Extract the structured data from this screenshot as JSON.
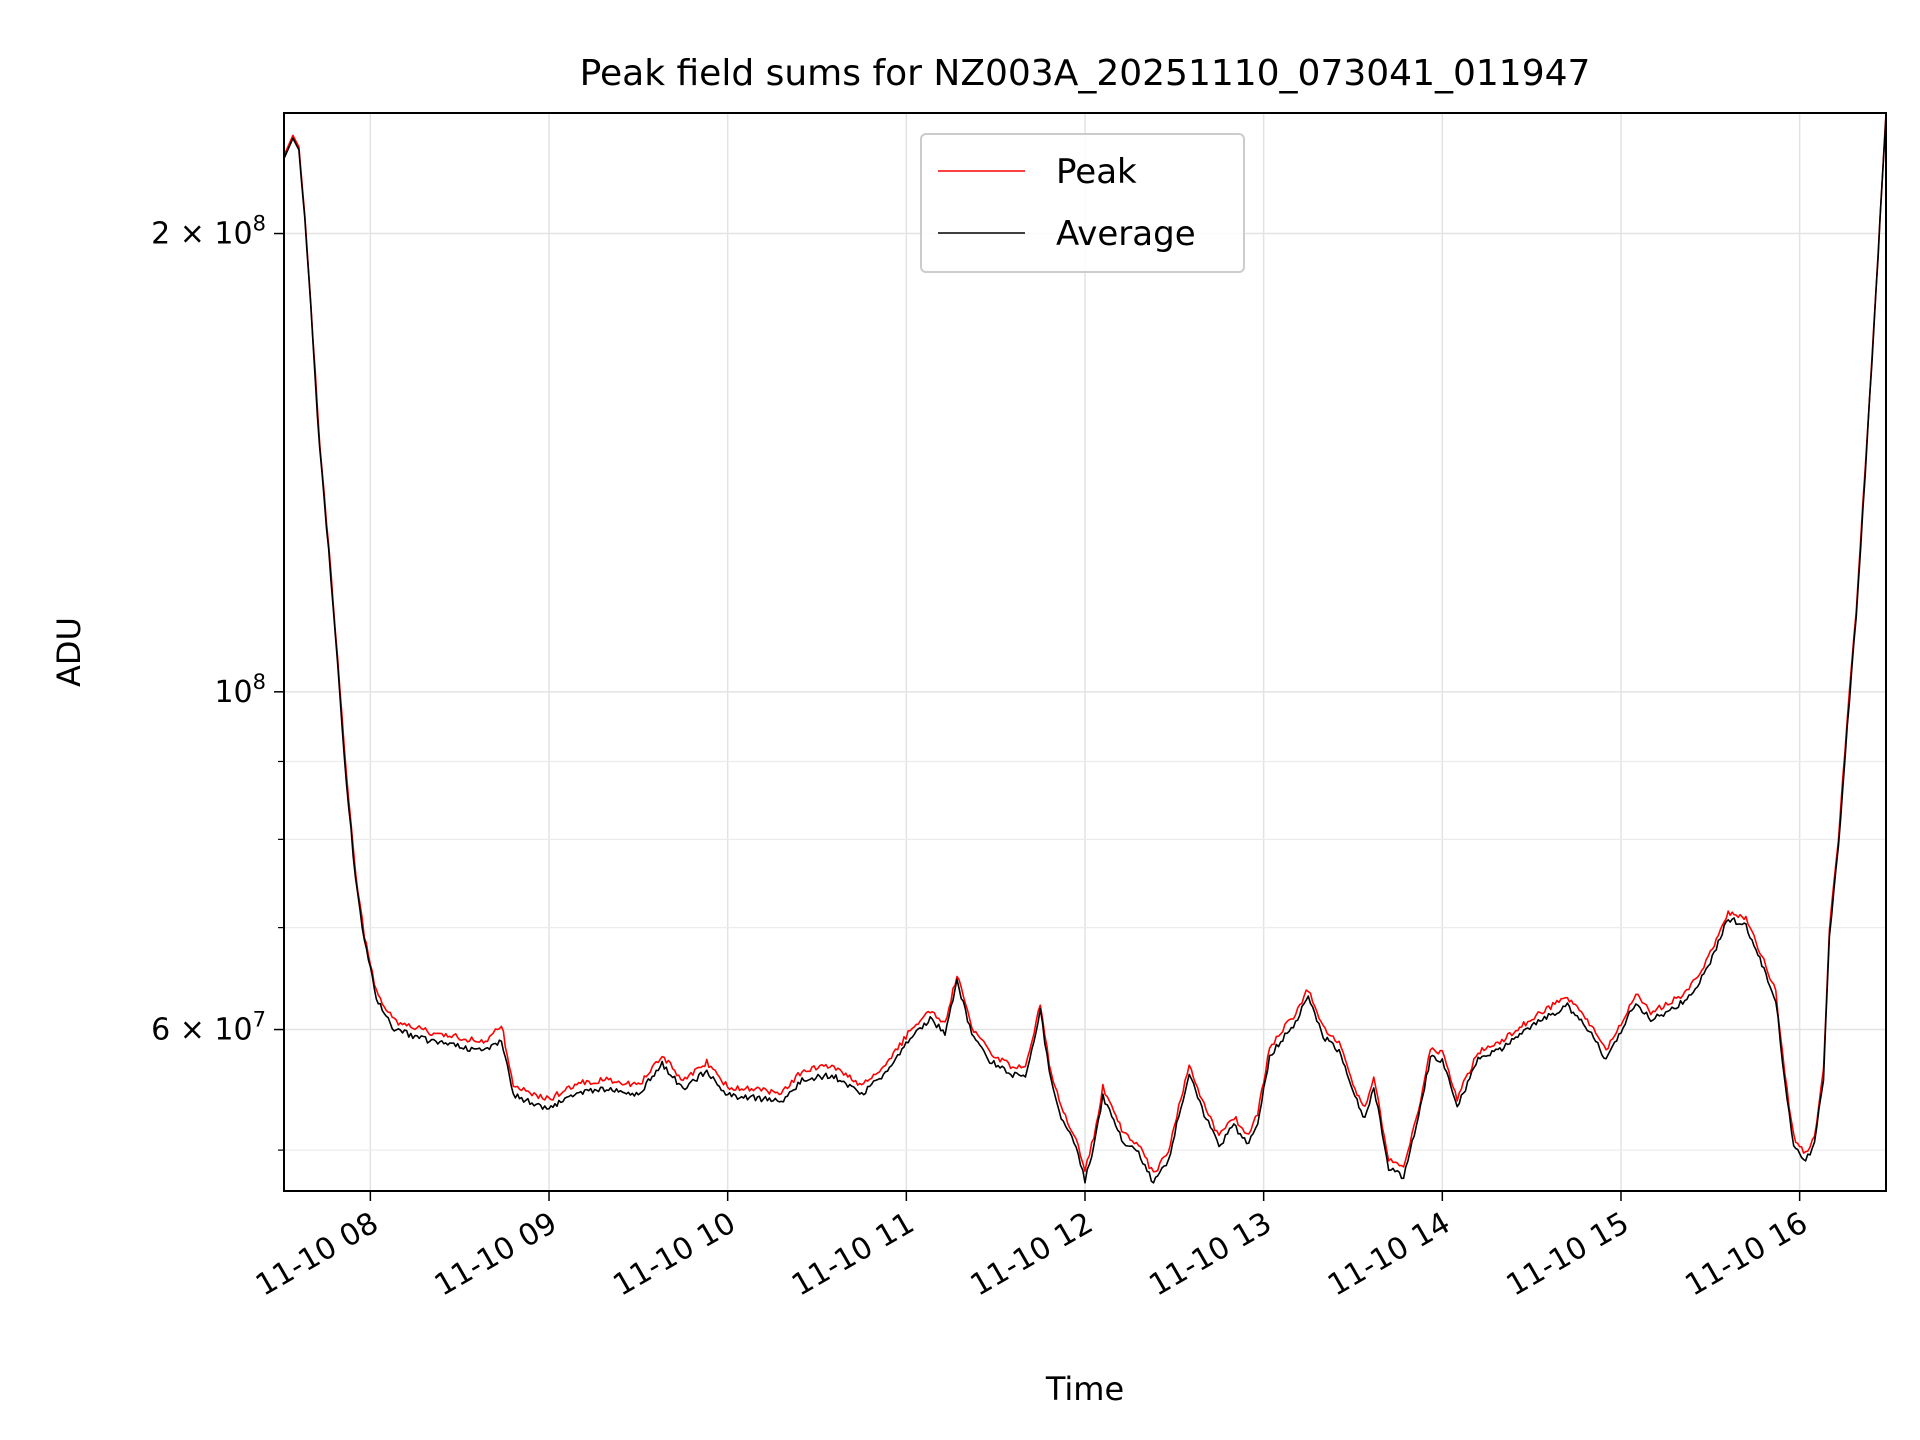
{
  "chart_data": {
    "type": "line",
    "title": "Peak field sums for NZ003A_20251110_073041_011947",
    "xlabel": "Time",
    "ylabel": "ADU",
    "y_scale": "log",
    "ylim": [
      47000000,
      240000000
    ],
    "xlim": [
      "11-10 07:31",
      "11-10 16:29"
    ],
    "grid": true,
    "legend_position": "upper center",
    "x_ticks": [
      {
        "value": "11-10 08:00",
        "label": "11-10 08"
      },
      {
        "value": "11-10 09:00",
        "label": "11-10 09"
      },
      {
        "value": "11-10 10:00",
        "label": "11-10 10"
      },
      {
        "value": "11-10 11:00",
        "label": "11-10 11"
      },
      {
        "value": "11-10 12:00",
        "label": "11-10 12"
      },
      {
        "value": "11-10 13:00",
        "label": "11-10 13"
      },
      {
        "value": "11-10 14:00",
        "label": "11-10 14"
      },
      {
        "value": "11-10 15:00",
        "label": "11-10 15"
      },
      {
        "value": "11-10 16:00",
        "label": "11-10 16"
      }
    ],
    "y_major_ticks": [
      {
        "value": 60000000,
        "base": "6 × 10",
        "exp": "7"
      },
      {
        "value": 100000000,
        "base": "10",
        "exp": "8"
      },
      {
        "value": 200000000,
        "base": "2 × 10",
        "exp": "8"
      }
    ],
    "y_minor_ticks": [
      50000000,
      70000000,
      80000000,
      90000000
    ],
    "series": [
      {
        "name": "Peak",
        "color": "#ff0000",
        "points": [
          [
            "11-10 07:31",
            225000000
          ],
          [
            "11-10 07:34",
            232000000
          ],
          [
            "11-10 07:36",
            228000000
          ],
          [
            "11-10 07:38",
            205000000
          ],
          [
            "11-10 07:40",
            180000000
          ],
          [
            "11-10 07:43",
            145000000
          ],
          [
            "11-10 07:46",
            125000000
          ],
          [
            "11-10 07:49",
            105000000
          ],
          [
            "11-10 07:52",
            88000000
          ],
          [
            "11-10 07:55",
            76000000
          ],
          [
            "11-10 07:58",
            69000000
          ],
          [
            "11-10 08:02",
            63500000
          ],
          [
            "11-10 08:08",
            60800000
          ],
          [
            "11-10 08:15",
            60200000
          ],
          [
            "11-10 08:22",
            59600000
          ],
          [
            "11-10 08:30",
            59300000
          ],
          [
            "11-10 08:38",
            58800000
          ],
          [
            "11-10 08:44",
            60500000
          ],
          [
            "11-10 08:48",
            55200000
          ],
          [
            "11-10 08:55",
            54400000
          ],
          [
            "11-10 09:00",
            54000000
          ],
          [
            "11-10 09:10",
            55400000
          ],
          [
            "11-10 09:20",
            55600000
          ],
          [
            "11-10 09:30",
            55100000
          ],
          [
            "11-10 09:38",
            57700000
          ],
          [
            "11-10 09:45",
            55500000
          ],
          [
            "11-10 09:53",
            57100000
          ],
          [
            "11-10 10:00",
            55000000
          ],
          [
            "11-10 10:10",
            54800000
          ],
          [
            "11-10 10:18",
            54500000
          ],
          [
            "11-10 10:25",
            56400000
          ],
          [
            "11-10 10:35",
            56800000
          ],
          [
            "11-10 10:45",
            55100000
          ],
          [
            "11-10 10:55",
            57500000
          ],
          [
            "11-10 11:02",
            60200000
          ],
          [
            "11-10 11:08",
            61600000
          ],
          [
            "11-10 11:13",
            60500000
          ],
          [
            "11-10 11:17",
            65200000
          ],
          [
            "11-10 11:22",
            60300000
          ],
          [
            "11-10 11:28",
            57900000
          ],
          [
            "11-10 11:35",
            56800000
          ],
          [
            "11-10 11:40",
            56500000
          ],
          [
            "11-10 11:45",
            62500000
          ],
          [
            "11-10 11:48",
            57000000
          ],
          [
            "11-10 11:52",
            53200000
          ],
          [
            "11-10 11:57",
            51000000
          ],
          [
            "11-10 12:00",
            48500000
          ],
          [
            "11-10 12:03",
            51000000
          ],
          [
            "11-10 12:06",
            55000000
          ],
          [
            "11-10 12:09",
            53500000
          ],
          [
            "11-10 12:13",
            51200000
          ],
          [
            "11-10 12:18",
            50500000
          ],
          [
            "11-10 12:23",
            48200000
          ],
          [
            "11-10 12:28",
            49900000
          ],
          [
            "11-10 12:35",
            57000000
          ],
          [
            "11-10 12:40",
            53500000
          ],
          [
            "11-10 12:45",
            51000000
          ],
          [
            "11-10 12:50",
            52600000
          ],
          [
            "11-10 12:55",
            51100000
          ],
          [
            "11-10 12:58",
            52900000
          ],
          [
            "11-10 13:02",
            58300000
          ],
          [
            "11-10 13:05",
            59500000
          ],
          [
            "11-10 13:10",
            61200000
          ],
          [
            "11-10 13:15",
            63800000
          ],
          [
            "11-10 13:20",
            60200000
          ],
          [
            "11-10 13:26",
            58500000
          ],
          [
            "11-10 13:30",
            55200000
          ],
          [
            "11-10 13:34",
            53200000
          ],
          [
            "11-10 13:37",
            55800000
          ],
          [
            "11-10 13:42",
            49300000
          ],
          [
            "11-10 13:47",
            48600000
          ],
          [
            "11-10 13:52",
            53200000
          ],
          [
            "11-10 13:56",
            58200000
          ],
          [
            "11-10 14:00",
            57900000
          ],
          [
            "11-10 14:05",
            54100000
          ],
          [
            "11-10 14:12",
            58000000
          ],
          [
            "11-10 14:20",
            59000000
          ],
          [
            "11-10 14:28",
            60600000
          ],
          [
            "11-10 14:35",
            61900000
          ],
          [
            "11-10 14:42",
            63000000
          ],
          [
            "11-10 14:48",
            61200000
          ],
          [
            "11-10 14:55",
            58100000
          ],
          [
            "11-10 15:00",
            60600000
          ],
          [
            "11-10 15:05",
            63300000
          ],
          [
            "11-10 15:10",
            61600000
          ],
          [
            "11-10 15:15",
            62300000
          ],
          [
            "11-10 15:20",
            63100000
          ],
          [
            "11-10 15:25",
            64600000
          ],
          [
            "11-10 15:30",
            67300000
          ],
          [
            "11-10 15:36",
            71700000
          ],
          [
            "11-10 15:42",
            70900000
          ],
          [
            "11-10 15:48",
            66500000
          ],
          [
            "11-10 15:52",
            63500000
          ],
          [
            "11-10 15:55",
            56000000
          ],
          [
            "11-10 15:58",
            51000000
          ],
          [
            "11-10 16:02",
            49800000
          ],
          [
            "11-10 16:05",
            51000000
          ],
          [
            "11-10 16:08",
            56500000
          ],
          [
            "11-10 16:10",
            70000000
          ],
          [
            "11-10 16:13",
            80000000
          ],
          [
            "11-10 16:16",
            96000000
          ],
          [
            "11-10 16:19",
            113000000
          ],
          [
            "11-10 16:22",
            140000000
          ],
          [
            "11-10 16:25",
            175000000
          ],
          [
            "11-10 16:29",
            240000000
          ]
        ]
      },
      {
        "name": "Average",
        "color": "#000000",
        "points": [
          [
            "11-10 07:31",
            224000000
          ],
          [
            "11-10 07:34",
            231000000
          ],
          [
            "11-10 07:36",
            227000000
          ],
          [
            "11-10 07:38",
            204000000
          ],
          [
            "11-10 07:40",
            179000000
          ],
          [
            "11-10 07:43",
            144000000
          ],
          [
            "11-10 07:46",
            124000000
          ],
          [
            "11-10 07:49",
            104000000
          ],
          [
            "11-10 07:52",
            87000000
          ],
          [
            "11-10 07:55",
            75500000
          ],
          [
            "11-10 07:58",
            68500000
          ],
          [
            "11-10 08:02",
            63000000
          ],
          [
            "11-10 08:08",
            60000000
          ],
          [
            "11-10 08:15",
            59400000
          ],
          [
            "11-10 08:22",
            58800000
          ],
          [
            "11-10 08:30",
            58500000
          ],
          [
            "11-10 08:38",
            58000000
          ],
          [
            "11-10 08:44",
            59000000
          ],
          [
            "11-10 08:48",
            54400000
          ],
          [
            "11-10 08:55",
            53600000
          ],
          [
            "11-10 09:00",
            53200000
          ],
          [
            "11-10 09:10",
            54600000
          ],
          [
            "11-10 09:20",
            54900000
          ],
          [
            "11-10 09:30",
            54400000
          ],
          [
            "11-10 09:38",
            57000000
          ],
          [
            "11-10 09:45",
            54800000
          ],
          [
            "11-10 09:53",
            56400000
          ],
          [
            "11-10 10:00",
            54300000
          ],
          [
            "11-10 10:10",
            54100000
          ],
          [
            "11-10 10:18",
            53800000
          ],
          [
            "11-10 10:25",
            55600000
          ],
          [
            "11-10 10:35",
            56000000
          ],
          [
            "11-10 10:45",
            54400000
          ],
          [
            "11-10 10:55",
            56700000
          ],
          [
            "11-10 11:02",
            59500000
          ],
          [
            "11-10 11:08",
            60900000
          ],
          [
            "11-10 11:13",
            59700000
          ],
          [
            "11-10 11:17",
            64500000
          ],
          [
            "11-10 11:22",
            59600000
          ],
          [
            "11-10 11:28",
            57200000
          ],
          [
            "11-10 11:35",
            56100000
          ],
          [
            "11-10 11:40",
            55800000
          ],
          [
            "11-10 11:45",
            61700000
          ],
          [
            "11-10 11:48",
            56300000
          ],
          [
            "11-10 11:52",
            52500000
          ],
          [
            "11-10 11:57",
            50300000
          ],
          [
            "11-10 12:00",
            47800000
          ],
          [
            "11-10 12:03",
            50300000
          ],
          [
            "11-10 12:06",
            54200000
          ],
          [
            "11-10 12:09",
            52800000
          ],
          [
            "11-10 12:13",
            50500000
          ],
          [
            "11-10 12:18",
            49800000
          ],
          [
            "11-10 12:23",
            47600000
          ],
          [
            "11-10 12:28",
            49200000
          ],
          [
            "11-10 12:35",
            56300000
          ],
          [
            "11-10 12:40",
            52800000
          ],
          [
            "11-10 12:45",
            50300000
          ],
          [
            "11-10 12:50",
            51900000
          ],
          [
            "11-10 12:55",
            50400000
          ],
          [
            "11-10 12:58",
            52200000
          ],
          [
            "11-10 13:02",
            57600000
          ],
          [
            "11-10 13:05",
            58700000
          ],
          [
            "11-10 13:10",
            60400000
          ],
          [
            "11-10 13:15",
            63000000
          ],
          [
            "11-10 13:20",
            59400000
          ],
          [
            "11-10 13:26",
            57800000
          ],
          [
            "11-10 13:30",
            54500000
          ],
          [
            "11-10 13:34",
            52500000
          ],
          [
            "11-10 13:37",
            55000000
          ],
          [
            "11-10 13:42",
            48700000
          ],
          [
            "11-10 13:47",
            48000000
          ],
          [
            "11-10 13:52",
            52500000
          ],
          [
            "11-10 13:56",
            57500000
          ],
          [
            "11-10 14:00",
            57200000
          ],
          [
            "11-10 14:05",
            53400000
          ],
          [
            "11-10 14:12",
            57300000
          ],
          [
            "11-10 14:20",
            58300000
          ],
          [
            "11-10 14:28",
            59900000
          ],
          [
            "11-10 14:35",
            61100000
          ],
          [
            "11-10 14:42",
            62200000
          ],
          [
            "11-10 14:48",
            60400000
          ],
          [
            "11-10 14:55",
            57400000
          ],
          [
            "11-10 15:00",
            59800000
          ],
          [
            "11-10 15:05",
            62600000
          ],
          [
            "11-10 15:10",
            60800000
          ],
          [
            "11-10 15:15",
            61600000
          ],
          [
            "11-10 15:20",
            62400000
          ],
          [
            "11-10 15:25",
            63800000
          ],
          [
            "11-10 15:30",
            66500000
          ],
          [
            "11-10 15:36",
            71000000
          ],
          [
            "11-10 15:42",
            70200000
          ],
          [
            "11-10 15:48",
            65800000
          ],
          [
            "11-10 15:52",
            62800000
          ],
          [
            "11-10 15:55",
            55300000
          ],
          [
            "11-10 15:58",
            50400000
          ],
          [
            "11-10 16:02",
            49200000
          ],
          [
            "11-10 16:05",
            50400000
          ],
          [
            "11-10 16:08",
            55800000
          ],
          [
            "11-10 16:10",
            69200000
          ],
          [
            "11-10 16:13",
            79000000
          ],
          [
            "11-10 16:16",
            95000000
          ],
          [
            "11-10 16:19",
            112000000
          ],
          [
            "11-10 16:22",
            139000000
          ],
          [
            "11-10 16:25",
            174000000
          ],
          [
            "11-10 16:29",
            239000000
          ]
        ]
      }
    ]
  }
}
